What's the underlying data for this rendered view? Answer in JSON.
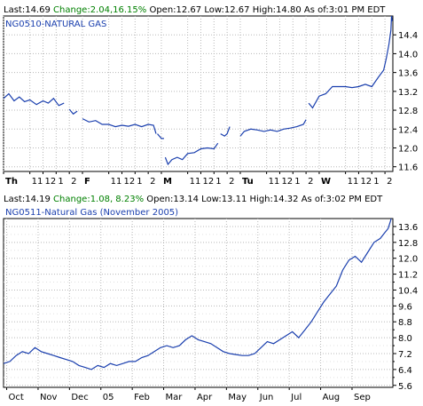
{
  "quotes": [
    {
      "last_label": "Last:",
      "last": "14.69",
      "change_label": "Change:",
      "change": "2.04,16.15%",
      "open_label": "Open:",
      "open": "12.67",
      "low_label": "Low:",
      "low": "12.67",
      "high_label": "High:",
      "high": "14.80",
      "asof_label": "As of:",
      "asof": "3:01 PM EDT",
      "symbol": "NG0510-NATURAL GAS"
    },
    {
      "last_label": "Last:",
      "last": "14.19",
      "change_label": "Change:",
      "change": "1.08, 8.23%",
      "open_label": "Open:",
      "open": "13.14",
      "low_label": "Low:",
      "low": "13.11",
      "high_label": "High:",
      "high": "14.32",
      "asof_label": "As of:",
      "asof": "3:02 PM EDT",
      "symbol": "NG0511-Natural Gas (November 2005)"
    }
  ],
  "colors": {
    "line": "#1a3fae",
    "grid": "#b8b8b8",
    "axis": "#000000",
    "change": "#008000",
    "symbol": "#1a3fae"
  },
  "chart_data": [
    {
      "type": "line",
      "title": "NG0510-NATURAL GAS",
      "grid": true,
      "y_axis_side": "right",
      "ylim": [
        11.5,
        14.8
      ],
      "yticks": [
        "11.6",
        "12.0",
        "12.4",
        "12.8",
        "13.2",
        "13.6",
        "14.0",
        "14.4"
      ],
      "xticks": [
        {
          "label": "Th",
          "bold": true,
          "x": 0
        },
        {
          "label": "11",
          "x": 2
        },
        {
          "label": "12",
          "x": 3
        },
        {
          "label": "1",
          "x": 4
        },
        {
          "label": "2",
          "x": 5
        },
        {
          "label": "F",
          "bold": true,
          "x": 6
        },
        {
          "label": "11",
          "x": 8
        },
        {
          "label": "12",
          "x": 9
        },
        {
          "label": "1",
          "x": 10
        },
        {
          "label": "2",
          "x": 11
        },
        {
          "label": "M",
          "bold": true,
          "x": 12
        },
        {
          "label": "11",
          "x": 14
        },
        {
          "label": "12",
          "x": 15
        },
        {
          "label": "1",
          "x": 16
        },
        {
          "label": "2",
          "x": 17
        },
        {
          "label": "Tu",
          "bold": true,
          "x": 18
        },
        {
          "label": "11",
          "x": 20
        },
        {
          "label": "12",
          "x": 21
        },
        {
          "label": "1",
          "x": 22
        },
        {
          "label": "2",
          "x": 23
        },
        {
          "label": "W",
          "bold": true,
          "x": 24
        },
        {
          "label": "11",
          "x": 26
        },
        {
          "label": "12",
          "x": 27
        },
        {
          "label": "1",
          "x": 28
        },
        {
          "label": "2",
          "x": 29
        }
      ],
      "xlim": [
        0,
        29.6
      ],
      "segments": [
        [
          [
            0,
            13.05
          ],
          [
            0.4,
            13.15
          ],
          [
            0.8,
            13.0
          ],
          [
            1.2,
            13.08
          ],
          [
            1.6,
            12.98
          ],
          [
            2.0,
            13.02
          ],
          [
            2.5,
            12.92
          ],
          [
            3.0,
            13.0
          ],
          [
            3.4,
            12.95
          ],
          [
            3.8,
            13.05
          ],
          [
            4.2,
            12.9
          ],
          [
            4.6,
            12.95
          ]
        ],
        [
          [
            5.0,
            12.82
          ],
          [
            5.3,
            12.72
          ],
          [
            5.6,
            12.78
          ]
        ],
        [
          [
            6.0,
            12.62
          ],
          [
            6.5,
            12.55
          ],
          [
            7.0,
            12.58
          ],
          [
            7.5,
            12.5
          ],
          [
            8.0,
            12.5
          ],
          [
            8.5,
            12.45
          ],
          [
            9.0,
            12.48
          ],
          [
            9.5,
            12.46
          ],
          [
            10.0,
            12.5
          ],
          [
            10.5,
            12.45
          ],
          [
            11.0,
            12.5
          ],
          [
            11.4,
            12.48
          ],
          [
            11.6,
            12.3
          ]
        ],
        [
          [
            11.7,
            12.3
          ],
          [
            12.0,
            12.2
          ],
          [
            12.2,
            12.2
          ]
        ],
        [
          [
            12.3,
            11.8
          ],
          [
            12.5,
            11.65
          ],
          [
            12.8,
            11.75
          ],
          [
            13.2,
            11.8
          ],
          [
            13.6,
            11.75
          ],
          [
            14.0,
            11.88
          ],
          [
            14.5,
            11.9
          ],
          [
            15.0,
            11.98
          ],
          [
            15.5,
            12.0
          ],
          [
            16.0,
            11.98
          ],
          [
            16.3,
            12.1
          ]
        ],
        [
          [
            16.5,
            12.3
          ],
          [
            16.8,
            12.25
          ],
          [
            17.0,
            12.3
          ],
          [
            17.2,
            12.45
          ]
        ],
        [
          [
            18.0,
            12.25
          ],
          [
            18.3,
            12.35
          ],
          [
            18.8,
            12.4
          ],
          [
            19.3,
            12.38
          ],
          [
            19.8,
            12.35
          ],
          [
            20.3,
            12.38
          ],
          [
            20.8,
            12.35
          ],
          [
            21.3,
            12.4
          ],
          [
            21.8,
            12.42
          ],
          [
            22.3,
            12.45
          ],
          [
            22.8,
            12.5
          ],
          [
            23.0,
            12.6
          ]
        ],
        [
          [
            23.2,
            12.95
          ],
          [
            23.5,
            12.85
          ],
          [
            24.0,
            13.1
          ],
          [
            24.5,
            13.15
          ],
          [
            25.0,
            13.3
          ],
          [
            25.5,
            13.3
          ],
          [
            26.0,
            13.3
          ],
          [
            26.5,
            13.28
          ],
          [
            27.0,
            13.3
          ],
          [
            27.5,
            13.35
          ],
          [
            28.0,
            13.3
          ],
          [
            28.5,
            13.5
          ],
          [
            28.9,
            13.65
          ],
          [
            29.1,
            13.9
          ],
          [
            29.3,
            14.2
          ],
          [
            29.45,
            14.5
          ],
          [
            29.5,
            14.8
          ],
          [
            29.55,
            14.69
          ]
        ]
      ]
    },
    {
      "type": "line",
      "title": "NG0511-Natural Gas (November 2005)",
      "grid": true,
      "y_axis_side": "right",
      "ylim": [
        5.5,
        14.0
      ],
      "yticks": [
        "5.6",
        "6.4",
        "7.2",
        "8.0",
        "8.8",
        "9.6",
        "10.4",
        "11.2",
        "12.0",
        "12.8",
        "13.6"
      ],
      "yticks_minor": [
        "6.0",
        "6.8",
        "7.6",
        "8.4",
        "9.2",
        "10.0",
        "10.8",
        "11.6",
        "12.4",
        "13.2"
      ],
      "xticks": [
        {
          "label": "Oct",
          "x": 0
        },
        {
          "label": "Nov",
          "x": 1
        },
        {
          "label": "Dec",
          "x": 2
        },
        {
          "label": "05",
          "x": 3
        },
        {
          "label": "Feb",
          "x": 4
        },
        {
          "label": "Mar",
          "x": 5
        },
        {
          "label": "Apr",
          "x": 6
        },
        {
          "label": "May",
          "x": 7
        },
        {
          "label": "Jun",
          "x": 8
        },
        {
          "label": "Jul",
          "x": 9
        },
        {
          "label": "Aug",
          "x": 10
        },
        {
          "label": "Sep",
          "x": 11
        }
      ],
      "xlim": [
        -0.1,
        12.3
      ],
      "segments": [
        [
          [
            -0.1,
            6.7
          ],
          [
            0.1,
            6.8
          ],
          [
            0.3,
            7.1
          ],
          [
            0.5,
            7.3
          ],
          [
            0.7,
            7.2
          ],
          [
            0.9,
            7.5
          ],
          [
            1.1,
            7.3
          ],
          [
            1.3,
            7.2
          ],
          [
            1.5,
            7.1
          ],
          [
            1.7,
            7.0
          ],
          [
            1.9,
            6.9
          ],
          [
            2.1,
            6.8
          ],
          [
            2.3,
            6.6
          ],
          [
            2.5,
            6.5
          ],
          [
            2.7,
            6.4
          ],
          [
            2.9,
            6.6
          ],
          [
            3.1,
            6.5
          ],
          [
            3.3,
            6.7
          ],
          [
            3.5,
            6.6
          ],
          [
            3.7,
            6.7
          ],
          [
            3.9,
            6.8
          ],
          [
            4.1,
            6.8
          ],
          [
            4.3,
            7.0
          ],
          [
            4.5,
            7.1
          ],
          [
            4.7,
            7.3
          ],
          [
            4.9,
            7.5
          ],
          [
            5.1,
            7.6
          ],
          [
            5.3,
            7.5
          ],
          [
            5.5,
            7.6
          ],
          [
            5.7,
            7.9
          ],
          [
            5.9,
            8.1
          ],
          [
            6.1,
            7.9
          ],
          [
            6.3,
            7.8
          ],
          [
            6.5,
            7.7
          ],
          [
            6.7,
            7.5
          ],
          [
            6.9,
            7.3
          ],
          [
            7.1,
            7.2
          ],
          [
            7.3,
            7.15
          ],
          [
            7.5,
            7.1
          ],
          [
            7.7,
            7.1
          ],
          [
            7.9,
            7.2
          ],
          [
            8.1,
            7.5
          ],
          [
            8.3,
            7.8
          ],
          [
            8.5,
            7.7
          ],
          [
            8.7,
            7.9
          ],
          [
            8.9,
            8.1
          ],
          [
            9.1,
            8.3
          ],
          [
            9.3,
            8.0
          ],
          [
            9.5,
            8.4
          ],
          [
            9.7,
            8.8
          ],
          [
            9.9,
            9.3
          ],
          [
            10.1,
            9.8
          ],
          [
            10.3,
            10.2
          ],
          [
            10.5,
            10.6
          ],
          [
            10.7,
            11.4
          ],
          [
            10.9,
            11.9
          ],
          [
            11.1,
            12.1
          ],
          [
            11.3,
            11.8
          ],
          [
            11.5,
            12.3
          ],
          [
            11.7,
            12.8
          ],
          [
            11.9,
            13.0
          ],
          [
            12.05,
            13.3
          ],
          [
            12.15,
            13.5
          ],
          [
            12.25,
            14.0
          ]
        ]
      ]
    }
  ]
}
